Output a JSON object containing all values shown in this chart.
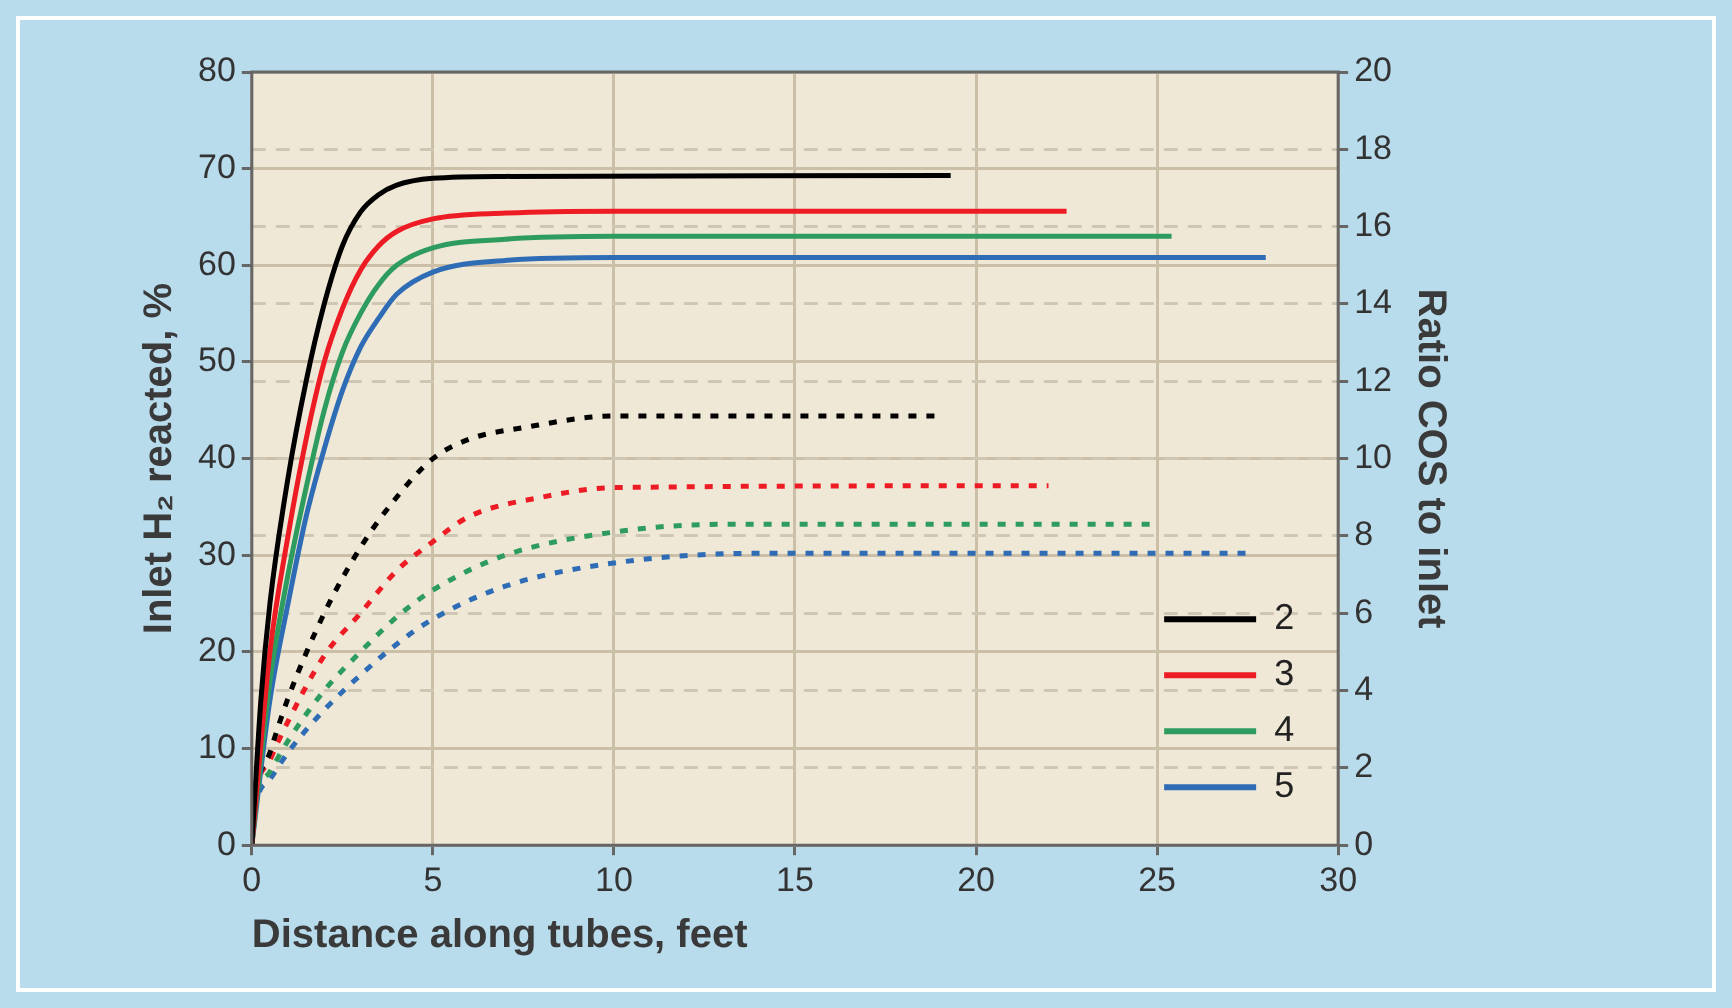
{
  "chart_data": {
    "type": "line",
    "xlabel": "Distance along tubes, feet",
    "ylabel": "Inlet H₂ reacted, %",
    "y2label": "Ratio COS to inlet",
    "xlim": [
      0,
      30
    ],
    "xticks": [
      0,
      5,
      10,
      15,
      20,
      25,
      30
    ],
    "ylim": [
      0,
      80
    ],
    "yticks": [
      0,
      10,
      20,
      30,
      40,
      50,
      60,
      70,
      80
    ],
    "y2lim": [
      0,
      20
    ],
    "y2ticks": [
      0,
      2,
      4,
      6,
      8,
      10,
      12,
      14,
      16,
      18,
      20
    ],
    "grid": true,
    "legend": "bottom right",
    "marker": "none",
    "series": [
      {
        "name": "2",
        "color": "#000000",
        "line_style": "solid",
        "x": [
          0,
          0.25,
          0.5,
          1,
          1.5,
          2,
          2.5,
          3,
          3.5,
          4,
          5,
          7,
          19.3
        ],
        "values": [
          0,
          15,
          25,
          38,
          48,
          56,
          62,
          65.5,
          67.3,
          68.3,
          69,
          69.2,
          69.3
        ]
      },
      {
        "name": "3",
        "color": "#ed1c24",
        "line_style": "solid",
        "x": [
          0,
          0.5,
          1,
          1.5,
          2,
          2.5,
          3,
          3.5,
          4,
          5,
          7,
          10,
          22.5
        ],
        "values": [
          0,
          20,
          32,
          42,
          50,
          55.5,
          59.5,
          62,
          63.5,
          64.8,
          65.4,
          65.6,
          65.6
        ]
      },
      {
        "name": "4",
        "color": "#2e9c5e",
        "line_style": "solid",
        "x": [
          0,
          0.5,
          1,
          1.5,
          2,
          2.5,
          3,
          3.5,
          4,
          5,
          7,
          10,
          25.4
        ],
        "values": [
          0,
          17,
          28,
          37,
          45,
          51,
          55,
          58,
          60,
          61.8,
          62.7,
          63,
          63
        ]
      },
      {
        "name": "5",
        "color": "#2e6db5",
        "line_style": "solid",
        "x": [
          0,
          0.5,
          1,
          1.5,
          2,
          2.5,
          3,
          3.5,
          4,
          5,
          7,
          10,
          28
        ],
        "values": [
          0,
          15,
          25,
          34,
          41,
          47,
          51.5,
          54.5,
          57,
          59.3,
          60.5,
          60.8,
          60.8
        ]
      },
      {
        "color": "#000000",
        "line_style": "dotted",
        "axis": "y2",
        "x": [
          0,
          0.1,
          0.5,
          1,
          2,
          3,
          4,
          5,
          6,
          7.5,
          10,
          18.9
        ],
        "values": [
          0,
          1.2,
          2.4,
          3.8,
          6,
          7.7,
          9,
          10,
          10.5,
          10.8,
          11.1,
          11.1
        ]
      },
      {
        "color": "#ed1c24",
        "line_style": "dotted",
        "axis": "y2",
        "x": [
          0,
          0.1,
          0.5,
          1,
          2,
          3,
          4,
          5,
          6,
          8,
          10,
          22
        ],
        "values": [
          0,
          1.2,
          2.2,
          3.2,
          4.9,
          6,
          7.1,
          7.85,
          8.5,
          9,
          9.25,
          9.3
        ]
      },
      {
        "color": "#2e9c5e",
        "line_style": "dotted",
        "axis": "y2",
        "x": [
          0,
          0.1,
          0.5,
          1,
          2,
          3,
          4,
          5,
          7,
          10,
          13,
          24.9
        ],
        "values": [
          0,
          1.1,
          1.9,
          2.7,
          4,
          5,
          5.9,
          6.6,
          7.5,
          8.1,
          8.3,
          8.3
        ]
      },
      {
        "color": "#2e6db5",
        "line_style": "dotted",
        "axis": "y2",
        "x": [
          0,
          0.1,
          0.5,
          1,
          2,
          3,
          4,
          5,
          7,
          10,
          14,
          27.6
        ],
        "values": [
          0,
          1,
          1.7,
          2.4,
          3.5,
          4.4,
          5.2,
          5.85,
          6.7,
          7.3,
          7.55,
          7.55
        ]
      }
    ]
  }
}
